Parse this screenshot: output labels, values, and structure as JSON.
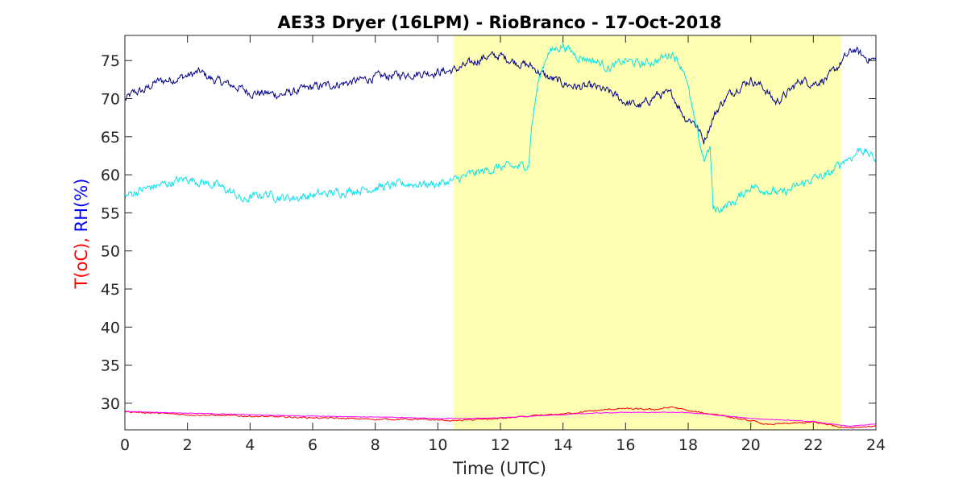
{
  "chart_data": {
    "type": "line",
    "title": "AE33 Dryer (16LPM)  - RioBranco - 17-Oct-2018",
    "xlabel": "Time (UTC)",
    "ylabel_parts": [
      {
        "text": "T(oC),",
        "color": "#ff0000"
      },
      {
        "text": " RH(%)",
        "color": "#0000ff"
      }
    ],
    "xlim": [
      0,
      24
    ],
    "ylim": [
      26.5,
      78.3
    ],
    "xticks": [
      0,
      2,
      4,
      6,
      8,
      10,
      12,
      14,
      16,
      18,
      20,
      22,
      24
    ],
    "yticks": [
      30,
      35,
      40,
      45,
      50,
      55,
      60,
      65,
      70,
      75
    ],
    "grid": false,
    "shaded_region": {
      "x_start": 10.5,
      "x_end": 22.9,
      "color": "#ffffb3"
    },
    "series": [
      {
        "color": "#00008b",
        "noise": 0.45,
        "x": [
          0,
          0.3,
          0.6,
          1.0,
          1.5,
          2.0,
          2.4,
          2.8,
          3.2,
          3.6,
          4.0,
          4.5,
          5.0,
          5.5,
          6.0,
          7.0,
          8.0,
          9.0,
          10.0,
          10.5,
          11.0,
          11.5,
          12.0,
          12.5,
          13.0,
          13.5,
          14.0,
          14.5,
          15.0,
          15.5,
          16.0,
          16.5,
          17.0,
          17.5,
          17.9,
          18.2,
          18.5,
          18.8,
          19.0,
          19.3,
          19.6,
          20.0,
          20.4,
          20.8,
          21.2,
          21.6,
          22.0,
          22.5,
          23.0,
          23.3,
          23.6,
          24.0
        ],
        "y": [
          69.8,
          70.8,
          71.0,
          72.2,
          72.5,
          73.0,
          73.5,
          72.5,
          72.0,
          71.5,
          70.8,
          70.7,
          70.5,
          71.0,
          71.5,
          72.0,
          72.8,
          73.2,
          73.5,
          73.7,
          74.5,
          75.5,
          75.6,
          74.8,
          74.2,
          72.8,
          72.0,
          71.5,
          71.5,
          70.8,
          69.5,
          69.0,
          70.5,
          70.5,
          67.5,
          67.0,
          64.5,
          67.5,
          69.0,
          70.5,
          71.5,
          72.5,
          71.5,
          69.5,
          70.8,
          72.5,
          72.0,
          72.8,
          75.3,
          76.5,
          75.5,
          75.0
        ]
      },
      {
        "color": "#00e5ee",
        "noise": 0.45,
        "x": [
          0,
          0.5,
          1.0,
          1.5,
          2.0,
          2.5,
          3.0,
          3.5,
          3.8,
          4.0,
          4.5,
          5.0,
          5.5,
          6.0,
          7.0,
          8.0,
          9.0,
          10.0,
          10.5,
          11.0,
          11.5,
          12.0,
          12.5,
          12.9,
          13.0,
          13.2,
          13.5,
          14.0,
          14.5,
          15.0,
          15.5,
          16.0,
          16.5,
          17.0,
          17.5,
          17.9,
          18.2,
          18.5,
          18.7,
          18.8,
          19.0,
          19.5,
          20.0,
          20.5,
          21.0,
          21.5,
          22.0,
          22.5,
          23.0,
          23.3,
          23.5,
          24.0
        ],
        "y": [
          57.2,
          58.0,
          58.5,
          59.0,
          59.5,
          59.0,
          58.5,
          57.5,
          56.5,
          57.0,
          57.5,
          57.0,
          57.0,
          57.3,
          57.8,
          58.3,
          58.8,
          58.8,
          59.2,
          60.0,
          60.5,
          61.0,
          61.0,
          61.3,
          66.5,
          72.0,
          76.0,
          77.0,
          75.5,
          75.0,
          74.0,
          75.0,
          74.5,
          75.0,
          76.0,
          73.5,
          67.0,
          62.0,
          63.5,
          55.5,
          55.5,
          56.5,
          58.5,
          58.0,
          57.5,
          58.5,
          59.5,
          60.0,
          62.0,
          62.5,
          63.5,
          62.0
        ]
      },
      {
        "color": "#ff0000",
        "noise": 0.08,
        "x": [
          0,
          1,
          2,
          3,
          4,
          5,
          6,
          7,
          8,
          9,
          10,
          10.5,
          11,
          12,
          13,
          14,
          15,
          15.5,
          16,
          16.5,
          17,
          17.5,
          18,
          18.5,
          19,
          19.5,
          20,
          20.5,
          21,
          21.5,
          22,
          22.5,
          23,
          23.5,
          24
        ],
        "y": [
          28.9,
          28.7,
          28.5,
          28.4,
          28.3,
          28.2,
          28.1,
          28.0,
          27.9,
          27.9,
          27.8,
          27.7,
          27.8,
          28.0,
          28.3,
          28.6,
          29.0,
          29.2,
          29.3,
          29.2,
          29.2,
          29.5,
          29.0,
          28.7,
          28.5,
          28.0,
          27.7,
          27.2,
          27.3,
          27.4,
          27.5,
          27.2,
          26.8,
          26.9,
          27.0
        ]
      },
      {
        "color": "#ff00ff",
        "noise": 0.03,
        "x": [
          0,
          2,
          4,
          6,
          8,
          10,
          10.5,
          11,
          12,
          13,
          14,
          15,
          16,
          17,
          17.8,
          18.5,
          19,
          20,
          21,
          22,
          22.9,
          23.2,
          24
        ],
        "y": [
          28.9,
          28.7,
          28.5,
          28.3,
          28.2,
          28.0,
          28.0,
          28.0,
          28.1,
          28.3,
          28.5,
          28.7,
          28.8,
          28.8,
          28.8,
          28.6,
          28.4,
          28.0,
          27.8,
          27.6,
          27.1,
          27.0,
          27.3
        ]
      }
    ]
  }
}
